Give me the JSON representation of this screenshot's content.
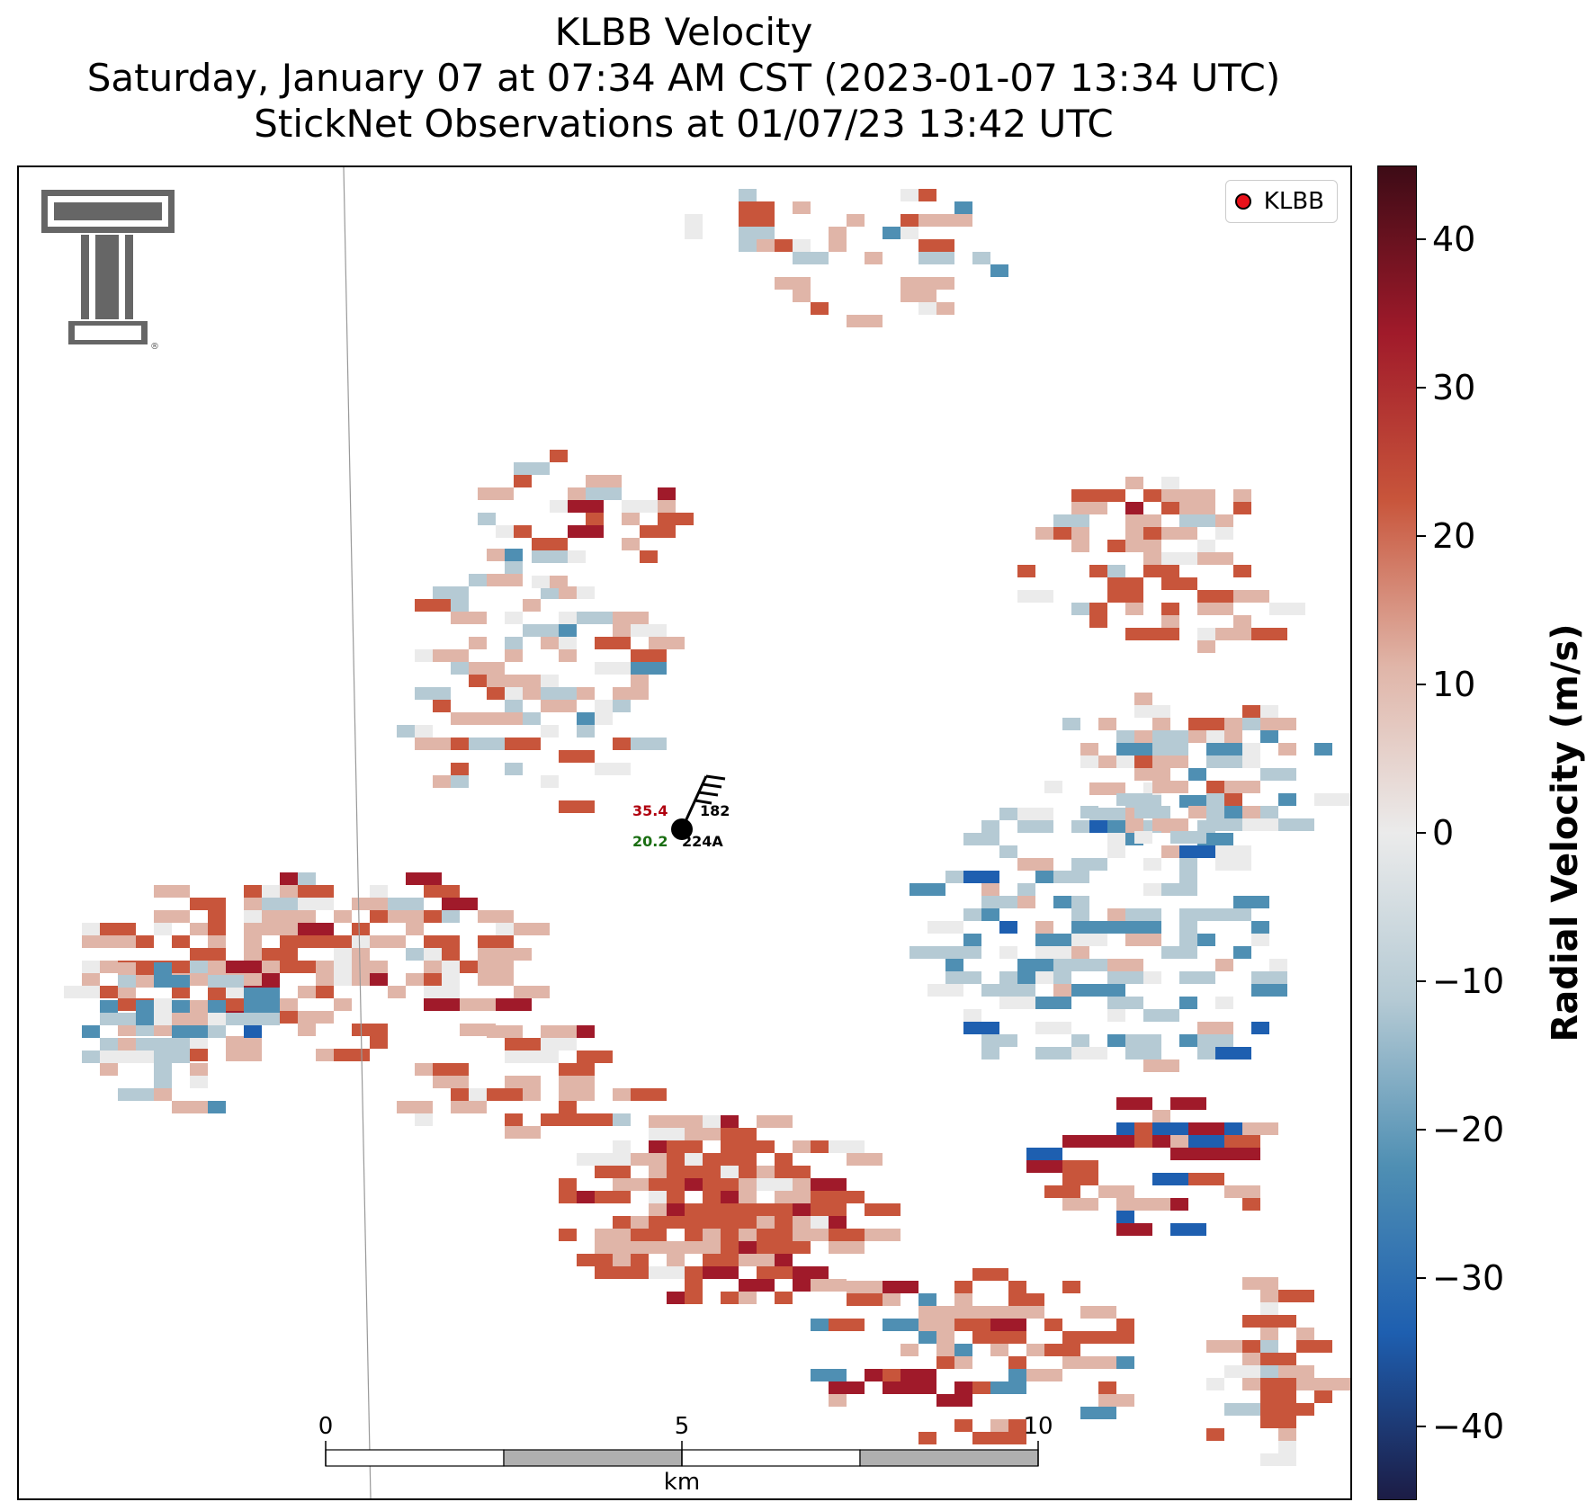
{
  "title": {
    "line1": "KLBB Velocity",
    "line2": "Saturday, January 07 at 07:34 AM CST (2023-01-07 13:34 UTC)",
    "line3": "StickNet Observations at 01/07/23 13:42 UTC"
  },
  "legend": {
    "label": "KLBB",
    "marker_color": "#e8111a"
  },
  "logo": {
    "name": "Texas Tech Double T"
  },
  "station": {
    "temperature": "35.4",
    "dewpoint": "20.2",
    "id": "224A",
    "value_right": "182",
    "temperature_color": "#b0000f",
    "dewpoint_color": "#1a6e12"
  },
  "scalebar": {
    "ticks": [
      "0",
      "5",
      "10"
    ],
    "unit": "km"
  },
  "colorbar": {
    "title": "Radial Velocity (m/s)",
    "min": -45,
    "max": 45,
    "tick_values": [
      40,
      30,
      20,
      10,
      0,
      -10,
      -20,
      -30,
      -40
    ],
    "tick_labels": [
      "40",
      "30",
      "20",
      "10",
      "0",
      "−10",
      "−20",
      "−30",
      "−40"
    ],
    "colors": {
      "max": "#3d0b16",
      "strong_out": "#a01a2a",
      "out": "#c8553b",
      "light_out": "#e0b5a8",
      "zero": "#ebebeb",
      "light_in": "#b5cad4",
      "in": "#4f8fb3",
      "strong_in": "#1e5fb0",
      "min": "#1c1c45"
    }
  }
}
